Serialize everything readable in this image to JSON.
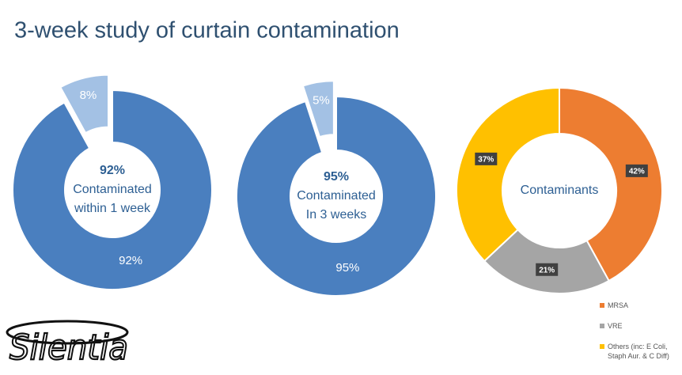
{
  "title": "3-week study of curtain contamination",
  "logo": "Silentia",
  "chart_data": [
    {
      "type": "donut",
      "center_label": "92%",
      "center_text": [
        "Contaminated",
        "within 1 week"
      ],
      "values": [
        92,
        8
      ],
      "value_labels": [
        "92%",
        "8%"
      ],
      "colors": [
        "#4a7fbf",
        "#a3c1e4"
      ],
      "explode": [
        false,
        true
      ]
    },
    {
      "type": "donut",
      "center_label": "95%",
      "center_text": [
        "Contaminated",
        "In 3 weeks"
      ],
      "values": [
        95,
        5
      ],
      "value_labels": [
        "95%",
        "5%"
      ],
      "colors": [
        "#4a7fbf",
        "#a3c1e4"
      ],
      "explode": [
        false,
        true
      ]
    },
    {
      "type": "donut",
      "center_text": [
        "Contaminants"
      ],
      "categories": [
        "MRSA",
        "VRE",
        "Others (inc: E Coli, Staph Aur. & C Diff)"
      ],
      "values": [
        42,
        21,
        37
      ],
      "value_labels": [
        "42%",
        "21%",
        "37%"
      ],
      "colors": [
        "#ed7d31",
        "#a5a5a5",
        "#ffc000"
      ],
      "legend": "bottom-right"
    }
  ]
}
